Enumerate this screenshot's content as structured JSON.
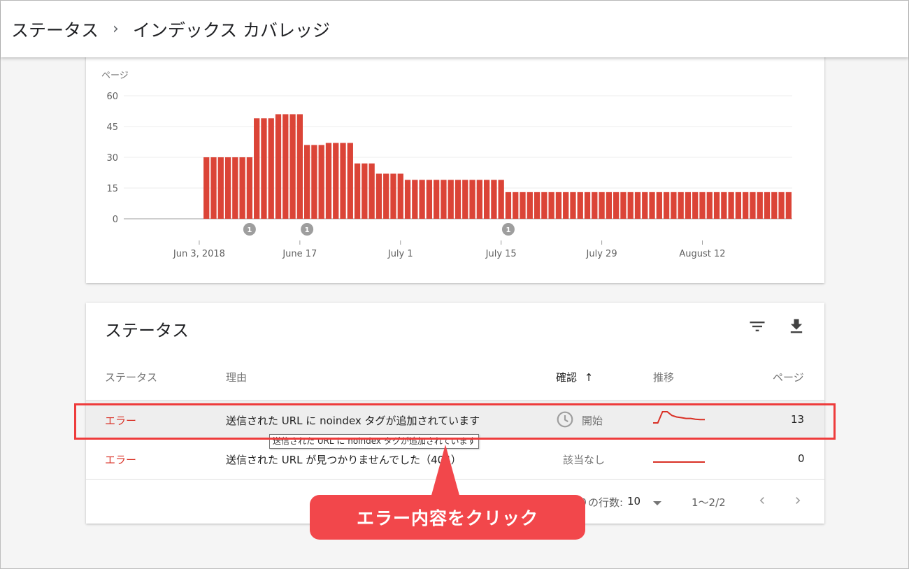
{
  "breadcrumb": {
    "parent": "ステータス",
    "separator": "›",
    "current": "インデックス カバレッジ"
  },
  "chart_data": {
    "type": "bar",
    "ylabel": "ページ",
    "ylim": [
      0,
      60
    ],
    "yticks": [
      0,
      15,
      30,
      45,
      60
    ],
    "x_tick_labels": [
      "Jun 3, 2018",
      "June 17",
      "July 1",
      "July 15",
      "July 29",
      "August 12"
    ],
    "values": [
      0,
      0,
      0,
      0,
      0,
      0,
      0,
      0,
      0,
      0,
      0,
      30,
      30,
      30,
      30,
      30,
      30,
      30,
      49,
      49,
      49,
      51,
      51,
      51,
      51,
      36,
      36,
      36,
      37,
      37,
      37,
      37,
      27,
      27,
      27,
      22,
      22,
      22,
      22,
      19,
      19,
      19,
      19,
      19,
      19,
      19,
      19,
      19,
      19,
      19,
      19,
      19,
      19,
      13,
      13,
      13,
      13,
      13,
      13,
      13,
      13,
      13,
      13,
      13,
      13,
      13,
      13,
      13,
      13,
      13,
      13,
      13,
      13,
      13,
      13,
      13,
      13,
      13,
      13,
      13,
      13,
      13,
      13,
      13,
      13,
      13,
      13,
      13,
      13,
      13,
      13,
      13,
      13
    ],
    "annotation_markers": [
      {
        "label": "1",
        "bar_index": 17
      },
      {
        "label": "1",
        "bar_index": 25
      },
      {
        "label": "1",
        "bar_index": 53
      }
    ],
    "bar_color": "#db4437",
    "grid": true
  },
  "status_table": {
    "title": "ステータス",
    "columns": {
      "status": "ステータス",
      "reason": "理由",
      "validation": "確認",
      "sort_arrow": "↑",
      "trend": "推移",
      "pages": "ページ"
    },
    "rows": [
      {
        "status": "エラー",
        "reason": "送信された URL に noindex タグが追加されています",
        "validation": "開始",
        "pages": "13",
        "trend": [
          0,
          0,
          3,
          3,
          2,
          1.6,
          1.4,
          1.2,
          1.2,
          1.0,
          0.9,
          0.9
        ]
      },
      {
        "status": "エラー",
        "reason": "送信された URL が見つかりませんでした（404）",
        "validation": "該当なし",
        "pages": "0",
        "trend": [
          0,
          0
        ]
      }
    ],
    "tooltip": "送信された URL に noindex タグが追加されています",
    "footer": {
      "rows_label": "1 ページあたりの行数:",
      "rows_value": "10",
      "range": "1〜2/2"
    }
  },
  "annotation": {
    "callout": "エラー内容をクリック"
  },
  "colors": {
    "error": "#d93025",
    "bar": "#db4437",
    "highlight": "#ee3c3c",
    "callout": "#f2474b"
  }
}
